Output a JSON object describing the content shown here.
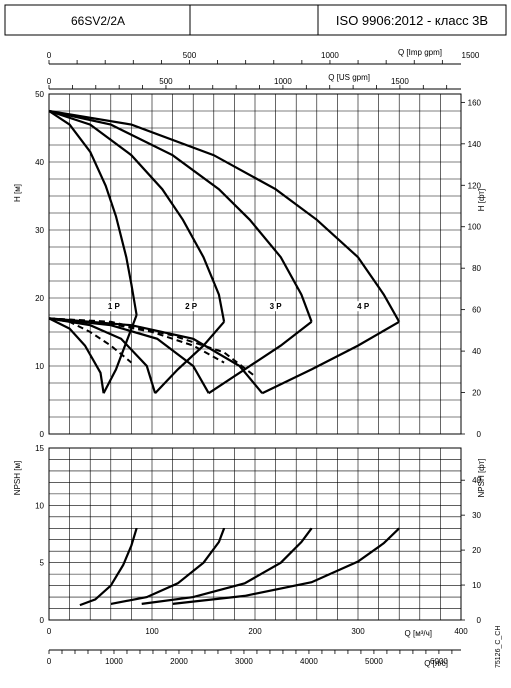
{
  "header": {
    "model": "66SV2/2A",
    "middle": "",
    "standard": "ISO 9906:2012 - класс 3B"
  },
  "chart_data": [
    {
      "type": "line",
      "name": "head-chart",
      "ylabel_left": "H [м]",
      "ylabel_right": "H [фт]",
      "xlabel_top1": "Q [Imp gpm]",
      "xlabel_top2": "Q [US gpm]",
      "ylim": [
        0,
        50
      ],
      "xlim_m3h": [
        0,
        400
      ],
      "yticks_left": [
        "0",
        "10",
        "20",
        "30",
        "40",
        "50"
      ],
      "yticks_right": [
        "0",
        "20",
        "40",
        "60",
        "80",
        "100",
        "120",
        "140",
        "160"
      ],
      "xticks_imp": [
        "0",
        "500",
        "1000",
        "1500"
      ],
      "xticks_us": [
        "0",
        "500",
        "1000",
        "1500"
      ],
      "series": [
        {
          "label": "1 P",
          "x": [
            0,
            20,
            40,
            55,
            65,
            75,
            80,
            85
          ],
          "y": [
            47.5,
            45.5,
            41.5,
            36.5,
            32,
            26,
            22,
            17.5
          ]
        },
        {
          "label": "2 P",
          "x": [
            0,
            40,
            80,
            110,
            130,
            150,
            165,
            170
          ],
          "y": [
            47.5,
            45.5,
            41,
            36,
            31.5,
            26,
            20.5,
            16.5
          ]
        },
        {
          "label": "3 P",
          "x": [
            0,
            60,
            120,
            165,
            195,
            225,
            245,
            255
          ],
          "y": [
            47.5,
            45.5,
            41,
            36,
            31.5,
            26,
            20.5,
            16.5
          ]
        },
        {
          "label": "4 P",
          "x": [
            0,
            80,
            160,
            220,
            260,
            300,
            325,
            340
          ],
          "y": [
            47.5,
            45.5,
            41,
            36,
            31.5,
            26,
            20.5,
            16.5
          ]
        }
      ],
      "efficiency_series": [
        {
          "x": [
            0,
            20,
            40,
            60,
            75,
            85
          ],
          "y": [
            17,
            16.5,
            14.5,
            11.5,
            8.5,
            6
          ]
        },
        {
          "x": [
            0,
            40,
            80,
            115,
            145,
            170
          ],
          "y": [
            17,
            16.5,
            14.5,
            11.5,
            8.5,
            6
          ]
        },
        {
          "x": [
            0,
            60,
            120,
            170,
            215,
            255
          ],
          "y": [
            17,
            16.5,
            14.5,
            11.5,
            8.5,
            6
          ]
        },
        {
          "x": [
            0,
            80,
            160,
            230,
            290,
            340
          ],
          "y": [
            17,
            16.5,
            14.5,
            11.5,
            8.5,
            6
          ]
        }
      ],
      "lower_branch_series": [
        {
          "x": [
            0,
            20,
            35,
            50,
            53
          ],
          "y": [
            17,
            15.5,
            13,
            9,
            6
          ]
        },
        {
          "x": [
            53,
            65,
            75,
            85
          ],
          "y": [
            6,
            9.5,
            13.5,
            17.5
          ]
        },
        {
          "x": [
            0,
            40,
            70,
            95,
            103
          ],
          "y": [
            17,
            16,
            14,
            10,
            6
          ]
        },
        {
          "x": [
            103,
            125,
            150,
            170
          ],
          "y": [
            6,
            9.5,
            13,
            16.5
          ]
        },
        {
          "x": [
            0,
            60,
            105,
            140,
            155
          ],
          "y": [
            17,
            16,
            14,
            10,
            6
          ]
        },
        {
          "x": [
            155,
            190,
            225,
            255
          ],
          "y": [
            6,
            9.5,
            13,
            16.5
          ]
        },
        {
          "x": [
            0,
            80,
            140,
            185,
            207
          ],
          "y": [
            17,
            16,
            14,
            10,
            6
          ]
        },
        {
          "x": [
            207,
            255,
            300,
            340
          ],
          "y": [
            6,
            9.5,
            13,
            16.5
          ]
        }
      ],
      "dashed_series": [
        {
          "x": [
            0,
            20,
            40,
            60,
            80
          ],
          "y": [
            17,
            16.5,
            15,
            13,
            10.5
          ]
        },
        {
          "x": [
            0,
            50,
            100,
            140,
            170
          ],
          "y": [
            17,
            16.5,
            15,
            13,
            10.5
          ]
        },
        {
          "x": [
            0,
            60,
            120,
            170,
            200
          ],
          "y": [
            17,
            16.5,
            14.5,
            12,
            8.5
          ]
        }
      ],
      "grid": true
    },
    {
      "type": "line",
      "name": "npsh-chart",
      "ylabel_left": "NPSH [м]",
      "ylabel_right": "NPSH [фт]",
      "xlabel_bottom1": "Q [м³/ч]",
      "xlabel_bottom2": "Q [л/с]",
      "ylim": [
        0,
        15
      ],
      "xlim_m3h": [
        0,
        400
      ],
      "yticks_left": [
        "0",
        "5",
        "10",
        "15"
      ],
      "yticks_right": [
        "0",
        "10",
        "20",
        "30",
        "40"
      ],
      "xticks_m3h": [
        "0",
        "100",
        "200",
        "300",
        "400"
      ],
      "xticks_ls": [
        "0",
        "1000",
        "2000",
        "3000",
        "4000",
        "5000",
        "6000"
      ],
      "series": [
        {
          "x": [
            30,
            45,
            60,
            72,
            80,
            85
          ],
          "y": [
            1.3,
            1.8,
            3,
            4.8,
            6.5,
            8
          ]
        },
        {
          "x": [
            60,
            95,
            125,
            150,
            165,
            170
          ],
          "y": [
            1.4,
            2,
            3.2,
            5,
            6.8,
            8
          ]
        },
        {
          "x": [
            90,
            140,
            190,
            225,
            245,
            255
          ],
          "y": [
            1.4,
            2,
            3.2,
            5,
            6.8,
            8
          ]
        },
        {
          "x": [
            120,
            190,
            255,
            300,
            325,
            340
          ],
          "y": [
            1.4,
            2.1,
            3.3,
            5.1,
            6.7,
            8
          ]
        }
      ],
      "grid": true
    }
  ],
  "code": "75126_C_CH"
}
